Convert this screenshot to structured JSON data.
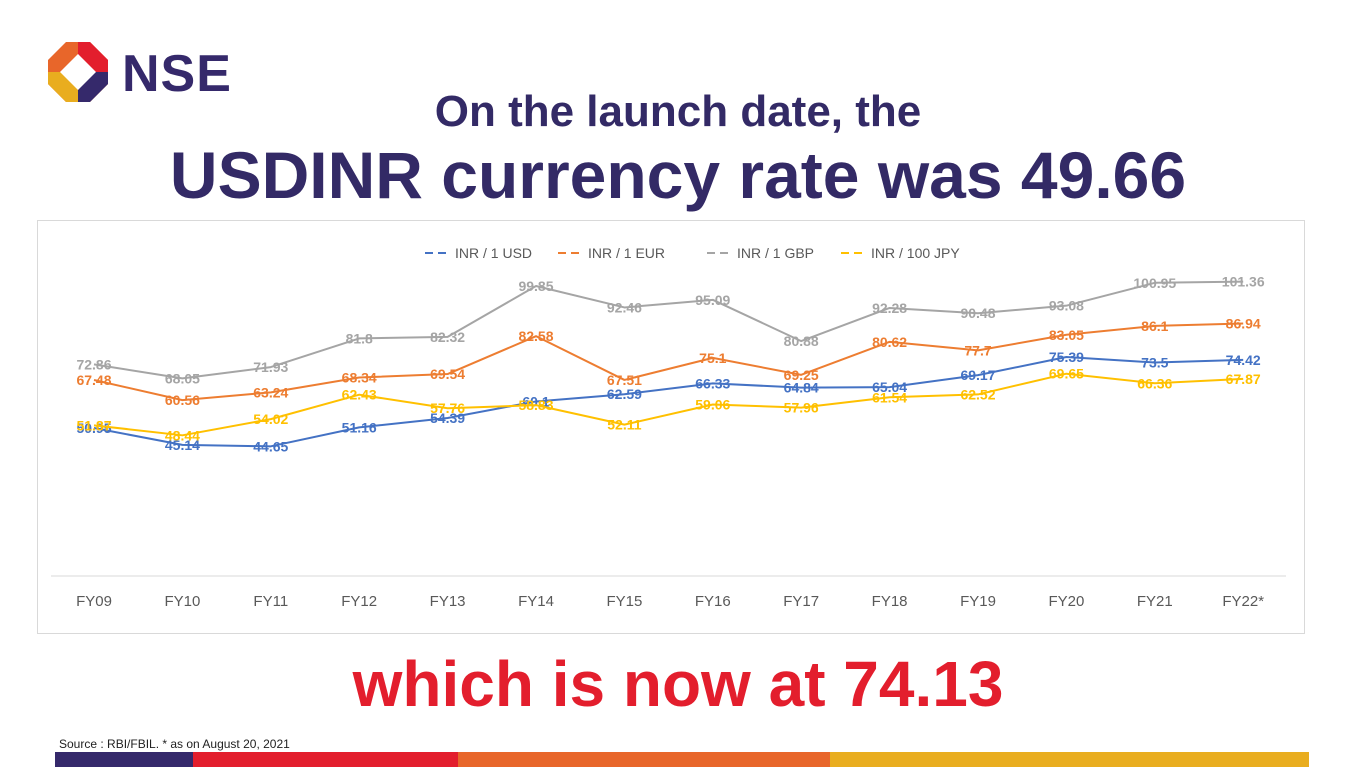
{
  "logo": {
    "text": "NSE"
  },
  "headline": {
    "line1": "On the launch date, the",
    "line2": "USDINR currency rate was 49.66"
  },
  "footer": {
    "highlight": "which is now at 74.13",
    "source": "Source : RBI/FBIL. * as on August 20, 2021"
  },
  "colors": {
    "brand_navy": "#332a66",
    "accent_red": "#e31e2d",
    "strip": [
      "#35296b",
      "#e31e2d",
      "#e8662a",
      "#e9ad1f"
    ]
  },
  "chart_data": {
    "type": "line",
    "categories": [
      "FY09",
      "FY10",
      "FY11",
      "FY12",
      "FY13",
      "FY14",
      "FY15",
      "FY16",
      "FY17",
      "FY18",
      "FY19",
      "FY20",
      "FY21",
      "FY22*"
    ],
    "series": [
      {
        "name": "INR / 1 USD",
        "color": "#4472c4",
        "values": [
          50.95,
          45.14,
          44.65,
          51.16,
          54.39,
          60.1,
          62.59,
          66.33,
          64.84,
          65.04,
          69.17,
          75.39,
          73.5,
          74.42
        ]
      },
      {
        "name": "INR / 1 EUR",
        "color": "#ed7d31",
        "values": [
          67.48,
          60.56,
          63.24,
          68.34,
          69.54,
          82.58,
          67.51,
          75.1,
          69.25,
          80.62,
          77.7,
          83.05,
          86.1,
          86.94
        ]
      },
      {
        "name": "INR / 1 GBP",
        "color": "#a5a5a5",
        "values": [
          72.86,
          68.05,
          71.93,
          81.8,
          82.32,
          99.85,
          92.46,
          95.09,
          80.88,
          92.28,
          90.48,
          93.08,
          100.95,
          101.36
        ]
      },
      {
        "name": "INR / 100 JPY",
        "color": "#ffc000",
        "values": [
          51.87,
          48.44,
          54.02,
          62.43,
          57.76,
          58.83,
          52.11,
          59.06,
          57.96,
          61.54,
          62.52,
          69.65,
          66.36,
          67.87
        ]
      }
    ],
    "legend": "top-center",
    "grid": false,
    "ylim": [
      0,
      115
    ]
  }
}
